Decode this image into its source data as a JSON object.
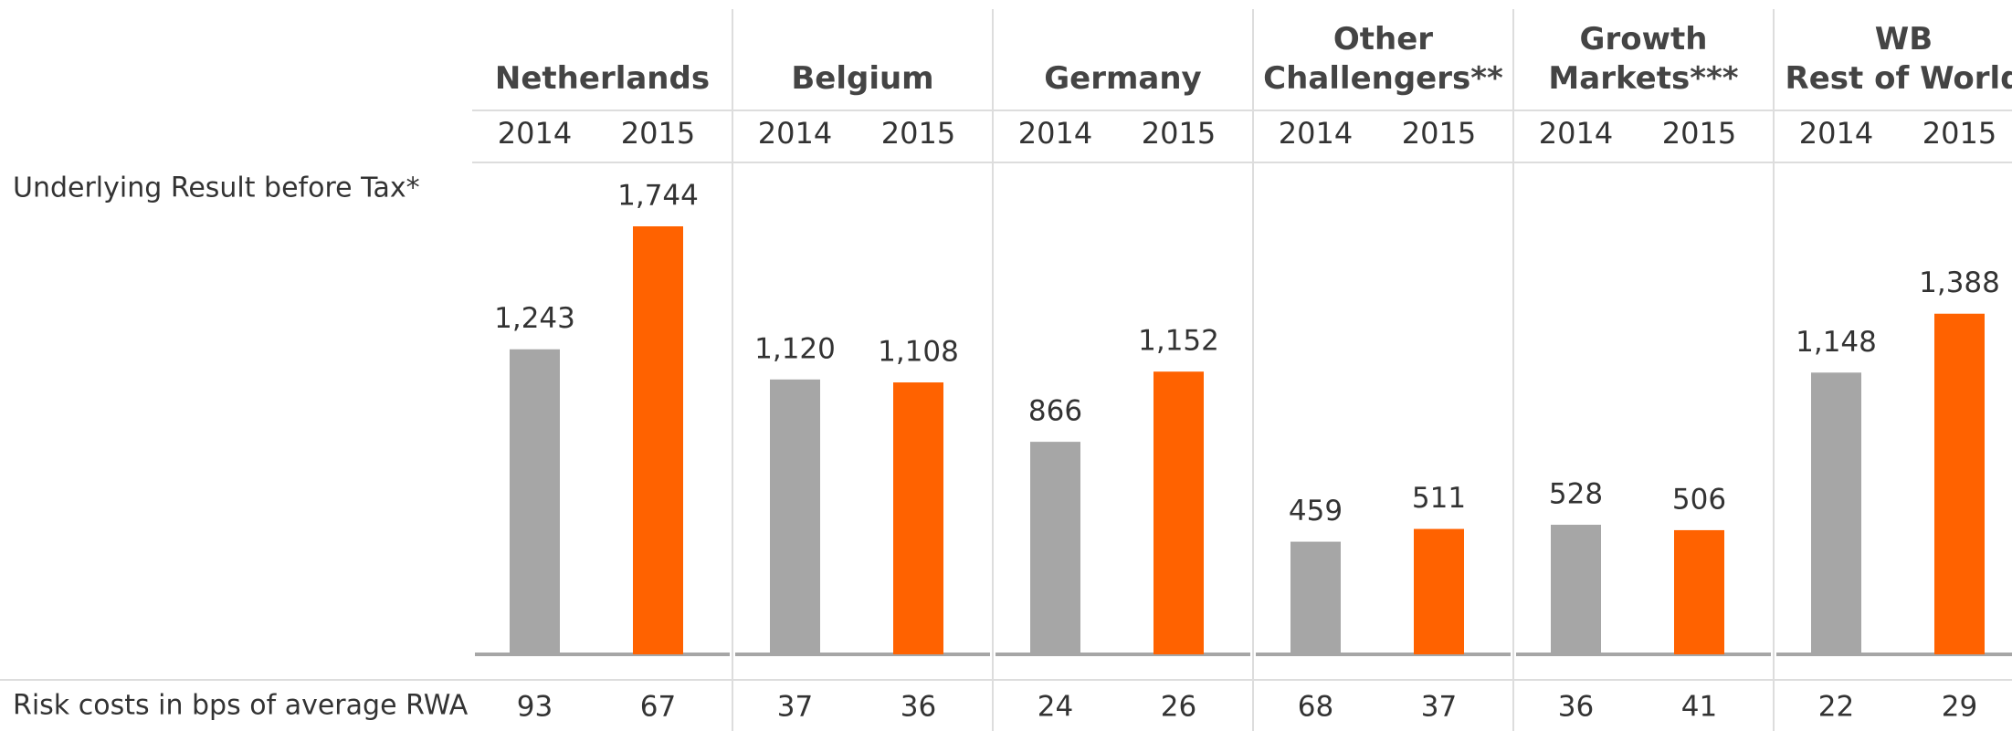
{
  "chart_data": {
    "type": "bar",
    "row_label": "Underlying Result before Tax*",
    "categories": [
      "Netherlands",
      "Belgium",
      "Germany",
      "Other\nChallengers**",
      "Growth\nMarkets***",
      "WB\nRest of World"
    ],
    "series": [
      {
        "name": "2014",
        "color": "#a6a6a6",
        "values": [
          1243,
          1120,
          866,
          459,
          528,
          1148
        ],
        "value_labels": [
          "1,243",
          "1,120",
          "866",
          "459",
          "528",
          "1,148"
        ]
      },
      {
        "name": "2015",
        "color": "#ff6200",
        "values": [
          1744,
          1108,
          1152,
          511,
          506,
          1388
        ],
        "value_labels": [
          "1,744",
          "1,108",
          "1,152",
          "511",
          "506",
          "1,388"
        ]
      }
    ],
    "risk_costs": {
      "label": "Risk costs in bps of average RWA",
      "series": [
        [
          93,
          37,
          24,
          68,
          36,
          22
        ],
        [
          67,
          36,
          26,
          37,
          41,
          29
        ]
      ]
    }
  }
}
